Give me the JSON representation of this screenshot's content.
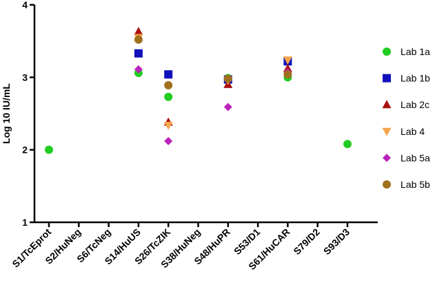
{
  "chart_data": {
    "type": "scatter",
    "ylabel": "Log 10 IU/mL",
    "xlabel": "",
    "title": "",
    "ylim": [
      1,
      4
    ],
    "yticks": [
      "1",
      "2",
      "3",
      "4"
    ],
    "categories": [
      "S1/TcEprot",
      "S2/HuNeg",
      "S6/TcNeg",
      "S14/HuUS",
      "S26/TcZIK",
      "S38/HuNeg",
      "S48/HuPR",
      "S53/D1",
      "S61/HuCAR",
      "S79/D2",
      "S93/D3"
    ],
    "legend_position": "right",
    "series": [
      {
        "name": "Lab 1a",
        "marker": "circle",
        "color": "#22cc22",
        "points": [
          {
            "x": "S1/TcEprot",
            "y": 2.0
          },
          {
            "x": "S14/HuUS",
            "y": 3.06
          },
          {
            "x": "S26/TcZIK",
            "y": 2.73
          },
          {
            "x": "S48/HuPR",
            "y": 2.99
          },
          {
            "x": "S61/HuCAR",
            "y": 3.0
          },
          {
            "x": "S93/D3",
            "y": 2.08
          }
        ]
      },
      {
        "name": "Lab 1b",
        "marker": "square",
        "color": "#1111bb",
        "points": [
          {
            "x": "S14/HuUS",
            "y": 3.33
          },
          {
            "x": "S26/TcZIK",
            "y": 3.04
          },
          {
            "x": "S48/HuPR",
            "y": 2.97
          },
          {
            "x": "S61/HuCAR",
            "y": 3.22
          }
        ]
      },
      {
        "name": "Lab 2c",
        "marker": "triangle-up",
        "color": "#aa1111",
        "points": [
          {
            "x": "S14/HuUS",
            "y": 3.63
          },
          {
            "x": "S26/TcZIK",
            "y": 2.38
          },
          {
            "x": "S48/HuPR",
            "y": 2.9
          },
          {
            "x": "S61/HuCAR",
            "y": 3.12
          }
        ]
      },
      {
        "name": "Lab 4",
        "marker": "triangle-down",
        "color": "#f6a44a",
        "points": [
          {
            "x": "S14/HuUS",
            "y": 3.55
          },
          {
            "x": "S26/TcZIK",
            "y": 2.34
          },
          {
            "x": "S48/HuPR",
            "y": 2.96
          },
          {
            "x": "S61/HuCAR",
            "y": 3.24
          }
        ]
      },
      {
        "name": "Lab 5a",
        "marker": "diamond",
        "color": "#bb22bb",
        "points": [
          {
            "x": "S14/HuUS",
            "y": 3.11
          },
          {
            "x": "S26/TcZIK",
            "y": 2.12
          },
          {
            "x": "S48/HuPR",
            "y": 2.59
          },
          {
            "x": "S61/HuCAR",
            "y": 3.07
          }
        ]
      },
      {
        "name": "Lab 5b",
        "marker": "circle",
        "color": "#a0701e",
        "points": [
          {
            "x": "S14/HuUS",
            "y": 3.52
          },
          {
            "x": "S26/TcZIK",
            "y": 2.89
          },
          {
            "x": "S48/HuPR",
            "y": 2.98
          },
          {
            "x": "S61/HuCAR",
            "y": 3.04
          }
        ]
      }
    ]
  }
}
